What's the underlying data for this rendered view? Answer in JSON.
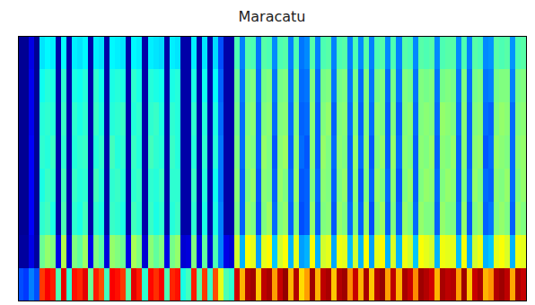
{
  "chart_data": {
    "type": "heatmap",
    "title": "Maracatu",
    "tick_labels": false,
    "xlim": [
      0,
      94
    ],
    "ylim": [
      0,
      8
    ],
    "zlim": [
      0,
      1
    ],
    "cells": [
      [
        0.2,
        0.18,
        0.25,
        0.2,
        0.82,
        0.88,
        0.85,
        0.45,
        0.9,
        0.42,
        0.86,
        0.84,
        0.9,
        0.48,
        0.85,
        0.8,
        0.44,
        0.88,
        0.86,
        0.82,
        0.46,
        0.9,
        0.85,
        0.42,
        0.87,
        0.83,
        0.88,
        0.45,
        0.84,
        0.86,
        0.4,
        0.44,
        0.85,
        0.46,
        0.82,
        0.43,
        0.8,
        0.6,
        0.45,
        0.42,
        0.92,
        0.7,
        0.95,
        0.97,
        0.68,
        0.94,
        0.96,
        0.72,
        0.93,
        0.98,
        0.7,
        0.95,
        0.66,
        0.72,
        0.97,
        0.7,
        0.94,
        0.96,
        0.68,
        0.95,
        0.97,
        0.74,
        0.93,
        0.7,
        0.96,
        0.68,
        0.95,
        0.98,
        0.72,
        0.94,
        0.7,
        0.96,
        0.93,
        0.74,
        0.97,
        0.95,
        0.92,
        0.7,
        0.96,
        0.94,
        0.95,
        0.72,
        0.97,
        0.68,
        0.93,
        0.96,
        0.7,
        0.73,
        0.95,
        0.97,
        0.94,
        0.71,
        0.96,
        0.93
      ],
      [
        0.03,
        0.03,
        0.1,
        0.03,
        0.48,
        0.52,
        0.5,
        0.1,
        0.55,
        0.08,
        0.5,
        0.47,
        0.53,
        0.1,
        0.5,
        0.46,
        0.09,
        0.52,
        0.5,
        0.48,
        0.1,
        0.54,
        0.5,
        0.08,
        0.51,
        0.47,
        0.5,
        0.1,
        0.49,
        0.52,
        0.08,
        0.09,
        0.5,
        0.1,
        0.47,
        0.08,
        0.45,
        0.25,
        0.1,
        0.08,
        0.58,
        0.3,
        0.62,
        0.6,
        0.28,
        0.6,
        0.63,
        0.32,
        0.58,
        0.62,
        0.3,
        0.6,
        0.28,
        0.3,
        0.62,
        0.3,
        0.58,
        0.6,
        0.29,
        0.61,
        0.6,
        0.31,
        0.58,
        0.3,
        0.62,
        0.28,
        0.6,
        0.63,
        0.3,
        0.59,
        0.3,
        0.61,
        0.58,
        0.32,
        0.62,
        0.6,
        0.58,
        0.3,
        0.61,
        0.6,
        0.6,
        0.31,
        0.62,
        0.29,
        0.58,
        0.61,
        0.3,
        0.32,
        0.6,
        0.62,
        0.59,
        0.3,
        0.61,
        0.6
      ],
      [
        0.02,
        0.02,
        0.12,
        0.02,
        0.42,
        0.44,
        0.4,
        0.04,
        0.45,
        0.04,
        0.42,
        0.4,
        0.44,
        0.04,
        0.42,
        0.4,
        0.04,
        0.43,
        0.42,
        0.4,
        0.04,
        0.44,
        0.42,
        0.04,
        0.43,
        0.4,
        0.42,
        0.04,
        0.41,
        0.43,
        0.04,
        0.04,
        0.42,
        0.04,
        0.4,
        0.04,
        0.4,
        0.25,
        0.04,
        0.04,
        0.5,
        0.22,
        0.52,
        0.5,
        0.2,
        0.5,
        0.53,
        0.23,
        0.5,
        0.52,
        0.22,
        0.5,
        0.2,
        0.22,
        0.52,
        0.22,
        0.5,
        0.51,
        0.21,
        0.52,
        0.5,
        0.23,
        0.5,
        0.22,
        0.52,
        0.2,
        0.5,
        0.53,
        0.22,
        0.5,
        0.22,
        0.52,
        0.5,
        0.23,
        0.52,
        0.5,
        0.5,
        0.22,
        0.52,
        0.5,
        0.5,
        0.23,
        0.52,
        0.21,
        0.5,
        0.52,
        0.22,
        0.24,
        0.5,
        0.52,
        0.5,
        0.22,
        0.52,
        0.5
      ],
      [
        0.02,
        0.02,
        0.12,
        0.02,
        0.4,
        0.43,
        0.42,
        0.04,
        0.44,
        0.04,
        0.43,
        0.41,
        0.42,
        0.04,
        0.44,
        0.41,
        0.04,
        0.42,
        0.43,
        0.41,
        0.04,
        0.42,
        0.43,
        0.04,
        0.42,
        0.41,
        0.43,
        0.04,
        0.42,
        0.42,
        0.04,
        0.04,
        0.43,
        0.04,
        0.41,
        0.04,
        0.39,
        0.24,
        0.04,
        0.04,
        0.51,
        0.22,
        0.5,
        0.52,
        0.21,
        0.51,
        0.5,
        0.22,
        0.52,
        0.5,
        0.23,
        0.52,
        0.21,
        0.22,
        0.5,
        0.23,
        0.51,
        0.5,
        0.22,
        0.5,
        0.52,
        0.22,
        0.51,
        0.21,
        0.5,
        0.22,
        0.52,
        0.5,
        0.23,
        0.51,
        0.21,
        0.5,
        0.52,
        0.22,
        0.5,
        0.52,
        0.51,
        0.23,
        0.5,
        0.52,
        0.51,
        0.22,
        0.5,
        0.23,
        0.52,
        0.5,
        0.23,
        0.22,
        0.51,
        0.5,
        0.52,
        0.23,
        0.5,
        0.52
      ],
      [
        0.02,
        0.02,
        0.12,
        0.02,
        0.42,
        0.41,
        0.43,
        0.04,
        0.42,
        0.04,
        0.41,
        0.42,
        0.43,
        0.04,
        0.41,
        0.42,
        0.04,
        0.44,
        0.41,
        0.42,
        0.04,
        0.43,
        0.41,
        0.04,
        0.44,
        0.42,
        0.41,
        0.04,
        0.43,
        0.41,
        0.04,
        0.04,
        0.41,
        0.04,
        0.42,
        0.04,
        0.41,
        0.24,
        0.04,
        0.04,
        0.5,
        0.23,
        0.51,
        0.5,
        0.22,
        0.52,
        0.5,
        0.21,
        0.51,
        0.53,
        0.22,
        0.51,
        0.23,
        0.21,
        0.51,
        0.22,
        0.52,
        0.5,
        0.23,
        0.51,
        0.5,
        0.22,
        0.52,
        0.23,
        0.51,
        0.21,
        0.5,
        0.52,
        0.22,
        0.52,
        0.23,
        0.51,
        0.5,
        0.22,
        0.51,
        0.5,
        0.52,
        0.22,
        0.51,
        0.5,
        0.52,
        0.22,
        0.51,
        0.22,
        0.51,
        0.52,
        0.21,
        0.23,
        0.52,
        0.51,
        0.5,
        0.23,
        0.51,
        0.52
      ],
      [
        0.02,
        0.02,
        0.11,
        0.02,
        0.41,
        0.42,
        0.41,
        0.04,
        0.43,
        0.04,
        0.42,
        0.4,
        0.42,
        0.04,
        0.43,
        0.4,
        0.04,
        0.41,
        0.42,
        0.43,
        0.04,
        0.41,
        0.42,
        0.04,
        0.42,
        0.43,
        0.4,
        0.04,
        0.42,
        0.41,
        0.04,
        0.04,
        0.42,
        0.04,
        0.41,
        0.04,
        0.4,
        0.23,
        0.04,
        0.04,
        0.49,
        0.23,
        0.5,
        0.51,
        0.22,
        0.5,
        0.51,
        0.23,
        0.5,
        0.51,
        0.23,
        0.5,
        0.22,
        0.23,
        0.51,
        0.22,
        0.5,
        0.52,
        0.22,
        0.5,
        0.51,
        0.23,
        0.5,
        0.22,
        0.5,
        0.23,
        0.51,
        0.5,
        0.22,
        0.5,
        0.22,
        0.5,
        0.51,
        0.23,
        0.5,
        0.51,
        0.5,
        0.23,
        0.52,
        0.51,
        0.5,
        0.23,
        0.51,
        0.22,
        0.5,
        0.51,
        0.23,
        0.22,
        0.5,
        0.52,
        0.51,
        0.23,
        0.5,
        0.51
      ],
      [
        0.02,
        0.02,
        0.11,
        0.02,
        0.39,
        0.41,
        0.4,
        0.04,
        0.42,
        0.04,
        0.4,
        0.39,
        0.41,
        0.04,
        0.42,
        0.39,
        0.04,
        0.4,
        0.41,
        0.4,
        0.04,
        0.42,
        0.4,
        0.04,
        0.41,
        0.4,
        0.39,
        0.04,
        0.4,
        0.41,
        0.04,
        0.04,
        0.4,
        0.04,
        0.39,
        0.04,
        0.38,
        0.22,
        0.04,
        0.04,
        0.48,
        0.24,
        0.49,
        0.5,
        0.23,
        0.49,
        0.5,
        0.24,
        0.49,
        0.5,
        0.24,
        0.49,
        0.23,
        0.24,
        0.5,
        0.23,
        0.49,
        0.5,
        0.24,
        0.49,
        0.5,
        0.24,
        0.49,
        0.23,
        0.5,
        0.24,
        0.49,
        0.5,
        0.23,
        0.49,
        0.24,
        0.5,
        0.49,
        0.24,
        0.5,
        0.49,
        0.5,
        0.24,
        0.49,
        0.5,
        0.49,
        0.24,
        0.5,
        0.23,
        0.49,
        0.5,
        0.24,
        0.25,
        0.49,
        0.5,
        0.5,
        0.25,
        0.49,
        0.5
      ],
      [
        0.02,
        0.02,
        0.1,
        0.02,
        0.35,
        0.37,
        0.36,
        0.04,
        0.38,
        0.04,
        0.36,
        0.35,
        0.37,
        0.04,
        0.36,
        0.35,
        0.04,
        0.37,
        0.36,
        0.35,
        0.04,
        0.37,
        0.36,
        0.04,
        0.36,
        0.35,
        0.34,
        0.04,
        0.36,
        0.35,
        0.04,
        0.04,
        0.36,
        0.04,
        0.35,
        0.04,
        0.34,
        0.2,
        0.04,
        0.04,
        0.45,
        0.25,
        0.46,
        0.45,
        0.24,
        0.46,
        0.45,
        0.26,
        0.45,
        0.46,
        0.25,
        0.45,
        0.24,
        0.26,
        0.46,
        0.25,
        0.45,
        0.46,
        0.25,
        0.45,
        0.46,
        0.25,
        0.45,
        0.26,
        0.46,
        0.25,
        0.45,
        0.46,
        0.26,
        0.45,
        0.25,
        0.46,
        0.45,
        0.26,
        0.46,
        0.45,
        0.46,
        0.26,
        0.45,
        0.46,
        0.46,
        0.26,
        0.45,
        0.25,
        0.46,
        0.45,
        0.26,
        0.27,
        0.46,
        0.45,
        0.46,
        0.27,
        0.45,
        0.46
      ]
    ]
  }
}
